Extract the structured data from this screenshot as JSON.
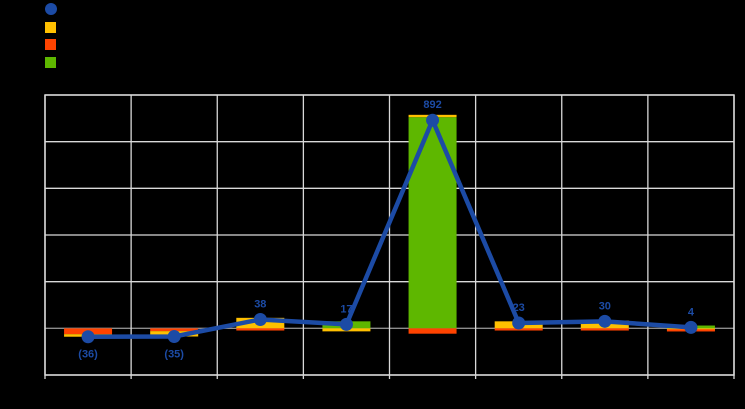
{
  "page": {
    "background_color": "#000000"
  },
  "legend": {
    "labels_visible": false,
    "items": [
      {
        "name": "net-line-series",
        "marker": "circle",
        "color": "#1C4BA5"
      },
      {
        "name": "yellow-bar-series",
        "marker": "square",
        "color": "#FFC000"
      },
      {
        "name": "orange-bar-series",
        "marker": "square",
        "color": "#FF4300"
      },
      {
        "name": "green-bar-series",
        "marker": "square",
        "color": "#5EB700"
      }
    ]
  },
  "chart_data": {
    "type": "bar+line",
    "title": "",
    "xlabel": "",
    "ylabel": "",
    "n_categories": 8,
    "category_axis_labels_visible": false,
    "y_axis_tick_labels_visible": false,
    "ylim": [
      -200,
      1000
    ],
    "y_gridline_interval": 200,
    "grid_on": true,
    "legend_position": "top-left",
    "line_series": {
      "name": "net-line-series",
      "marker": "circle",
      "color": "#1C4BA5",
      "values": [
        -36,
        -35,
        38,
        17,
        892,
        23,
        30,
        4
      ],
      "data_labels": [
        "(36)",
        "(35)",
        "38",
        "17",
        "892",
        "23",
        "30",
        "4"
      ]
    },
    "bar_series_colors": {
      "yellow": "#FFC000",
      "orange": "#FF4300",
      "green": "#5EB700"
    },
    "bars_stacked": true,
    "bar_segments_estimated": true,
    "bar_segments": [
      [
        {
          "series": "orange",
          "value": -25
        },
        {
          "series": "yellow",
          "value": -11
        }
      ],
      [
        {
          "series": "orange",
          "value": -12
        },
        {
          "series": "yellow",
          "value": -23
        }
      ],
      [
        {
          "series": "yellow",
          "value": 45
        },
        {
          "series": "orange",
          "value": -7
        }
      ],
      [
        {
          "series": "green",
          "value": 30
        },
        {
          "series": "yellow",
          "value": -13
        }
      ],
      [
        {
          "series": "green",
          "value": 905
        },
        {
          "series": "yellow",
          "value": 10
        },
        {
          "series": "orange",
          "value": -23
        }
      ],
      [
        {
          "series": "yellow",
          "value": 30
        },
        {
          "series": "orange",
          "value": -7
        }
      ],
      [
        {
          "series": "yellow",
          "value": 33
        },
        {
          "series": "orange",
          "value": -3
        }
      ],
      [
        {
          "series": "green",
          "value": 12
        },
        {
          "series": "yellow",
          "value": -4
        },
        {
          "series": "orange",
          "value": -4
        }
      ]
    ],
    "colors": {
      "gridline": "#D9D9D9",
      "plot_border": "#D9D9D9",
      "zero_axis_line": "#8C8C8C",
      "data_label_text": "#1C4BA5"
    }
  }
}
